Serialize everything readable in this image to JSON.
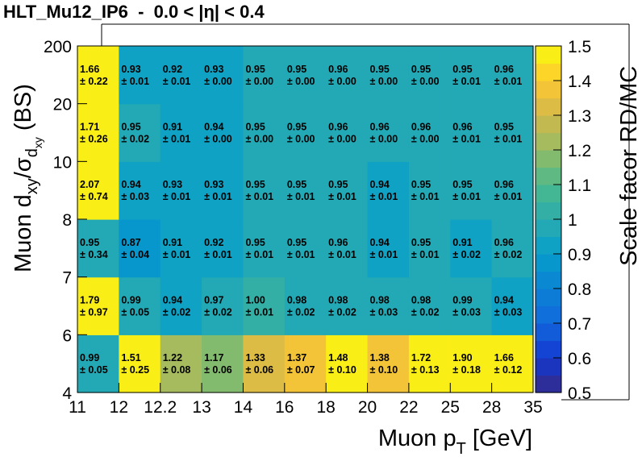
{
  "title": "HLT_Mu12_IP6  -  0.0 < |η| < 0.4",
  "chart_data": {
    "type": "heatmap",
    "x_bin_edges": [
      "11",
      "12",
      "12.2",
      "13",
      "14",
      "16",
      "18",
      "20",
      "22",
      "25",
      "28",
      "35"
    ],
    "y_bin_edges": [
      "4",
      "6",
      "7",
      "8",
      "10",
      "20",
      "200"
    ],
    "xlabel": {
      "main": "Muon p",
      "sub": "T",
      "tail": " [GeV]"
    },
    "ylabel": {
      "main": "Muon d",
      "sub1": "xy",
      "mid": "/σ",
      "sub2": "d",
      "subsub": "xy",
      "tail": " (BS)"
    },
    "zlabel": "Scale facor RD/MC",
    "zlim": [
      0.5,
      1.5
    ],
    "colorbar_ticks": [
      "0.5",
      "0.6",
      "0.7",
      "0.8",
      "0.9",
      "1",
      "1.1",
      "1.2",
      "1.3",
      "1.4",
      "1.5"
    ],
    "cells": [
      [
        {
          "v": 0.99,
          "t": "0.99",
          "e": "± 0.05"
        },
        {
          "v": 1.51,
          "t": "1.51",
          "e": "± 0.25"
        },
        {
          "v": 1.22,
          "t": "1.22",
          "e": "± 0.08"
        },
        {
          "v": 1.17,
          "t": "1.17",
          "e": "± 0.06"
        },
        {
          "v": 1.33,
          "t": "1.33",
          "e": "± 0.06"
        },
        {
          "v": 1.37,
          "t": "1.37",
          "e": "± 0.07"
        },
        {
          "v": 1.48,
          "t": "1.48",
          "e": "± 0.10"
        },
        {
          "v": 1.38,
          "t": "1.38",
          "e": "± 0.10"
        },
        {
          "v": 1.72,
          "t": "1.72",
          "e": "± 0.13"
        },
        {
          "v": 1.9,
          "t": "1.90",
          "e": "± 0.18"
        },
        {
          "v": 1.66,
          "t": "1.66",
          "e": "± 0.12"
        }
      ],
      [
        {
          "v": 1.79,
          "t": "1.79",
          "e": "± 0.97"
        },
        {
          "v": 0.99,
          "t": "0.99",
          "e": "± 0.05"
        },
        {
          "v": 0.94,
          "t": "0.94",
          "e": "± 0.02"
        },
        {
          "v": 0.97,
          "t": "0.97",
          "e": "± 0.02"
        },
        {
          "v": 1.0,
          "t": "1.00",
          "e": "± 0.01"
        },
        {
          "v": 0.98,
          "t": "0.98",
          "e": "± 0.02"
        },
        {
          "v": 0.98,
          "t": "0.98",
          "e": "± 0.02"
        },
        {
          "v": 0.98,
          "t": "0.98",
          "e": "± 0.03"
        },
        {
          "v": 0.98,
          "t": "0.98",
          "e": "± 0.02"
        },
        {
          "v": 0.99,
          "t": "0.99",
          "e": "± 0.03"
        },
        {
          "v": 0.94,
          "t": "0.94",
          "e": "± 0.03"
        }
      ],
      [
        {
          "v": 0.95,
          "t": "0.95",
          "e": "± 0.34"
        },
        {
          "v": 0.87,
          "t": "0.87",
          "e": "± 0.04"
        },
        {
          "v": 0.91,
          "t": "0.91",
          "e": "± 0.01"
        },
        {
          "v": 0.92,
          "t": "0.92",
          "e": "± 0.01"
        },
        {
          "v": 0.95,
          "t": "0.95",
          "e": "± 0.01"
        },
        {
          "v": 0.95,
          "t": "0.95",
          "e": "± 0.01"
        },
        {
          "v": 0.96,
          "t": "0.96",
          "e": "± 0.01"
        },
        {
          "v": 0.94,
          "t": "0.94",
          "e": "± 0.01"
        },
        {
          "v": 0.95,
          "t": "0.95",
          "e": "± 0.01"
        },
        {
          "v": 0.91,
          "t": "0.91",
          "e": "± 0.02"
        },
        {
          "v": 0.96,
          "t": "0.96",
          "e": "± 0.02"
        }
      ],
      [
        {
          "v": 2.07,
          "t": "2.07",
          "e": "± 0.74"
        },
        {
          "v": 0.94,
          "t": "0.94",
          "e": "± 0.03"
        },
        {
          "v": 0.93,
          "t": "0.93",
          "e": "± 0.01"
        },
        {
          "v": 0.93,
          "t": "0.93",
          "e": "± 0.01"
        },
        {
          "v": 0.95,
          "t": "0.95",
          "e": "± 0.01"
        },
        {
          "v": 0.95,
          "t": "0.95",
          "e": "± 0.01"
        },
        {
          "v": 0.95,
          "t": "0.95",
          "e": "± 0.01"
        },
        {
          "v": 0.94,
          "t": "0.94",
          "e": "± 0.01"
        },
        {
          "v": 0.95,
          "t": "0.95",
          "e": "± 0.01"
        },
        {
          "v": 0.95,
          "t": "0.95",
          "e": "± 0.01"
        },
        {
          "v": 0.96,
          "t": "0.96",
          "e": "± 0.01"
        }
      ],
      [
        {
          "v": 1.71,
          "t": "1.71",
          "e": "± 0.26"
        },
        {
          "v": 0.95,
          "t": "0.95",
          "e": "± 0.02"
        },
        {
          "v": 0.91,
          "t": "0.91",
          "e": "± 0.01"
        },
        {
          "v": 0.94,
          "t": "0.94",
          "e": "± 0.00"
        },
        {
          "v": 0.95,
          "t": "0.95",
          "e": "± 0.00"
        },
        {
          "v": 0.95,
          "t": "0.95",
          "e": "± 0.00"
        },
        {
          "v": 0.96,
          "t": "0.96",
          "e": "± 0.00"
        },
        {
          "v": 0.96,
          "t": "0.96",
          "e": "± 0.00"
        },
        {
          "v": 0.96,
          "t": "0.96",
          "e": "± 0.00"
        },
        {
          "v": 0.96,
          "t": "0.96",
          "e": "± 0.01"
        },
        {
          "v": 0.95,
          "t": "0.95",
          "e": "± 0.01"
        }
      ],
      [
        {
          "v": 1.66,
          "t": "1.66",
          "e": "± 0.22"
        },
        {
          "v": 0.93,
          "t": "0.93",
          "e": "± 0.01"
        },
        {
          "v": 0.92,
          "t": "0.92",
          "e": "± 0.01"
        },
        {
          "v": 0.93,
          "t": "0.93",
          "e": "± 0.00"
        },
        {
          "v": 0.95,
          "t": "0.95",
          "e": "± 0.00"
        },
        {
          "v": 0.95,
          "t": "0.95",
          "e": "± 0.00"
        },
        {
          "v": 0.96,
          "t": "0.96",
          "e": "± 0.00"
        },
        {
          "v": 0.95,
          "t": "0.95",
          "e": "± 0.00"
        },
        {
          "v": 0.95,
          "t": "0.95",
          "e": "± 0.00"
        },
        {
          "v": 0.95,
          "t": "0.95",
          "e": "± 0.01"
        },
        {
          "v": 0.96,
          "t": "0.96",
          "e": "± 0.01"
        }
      ]
    ]
  }
}
